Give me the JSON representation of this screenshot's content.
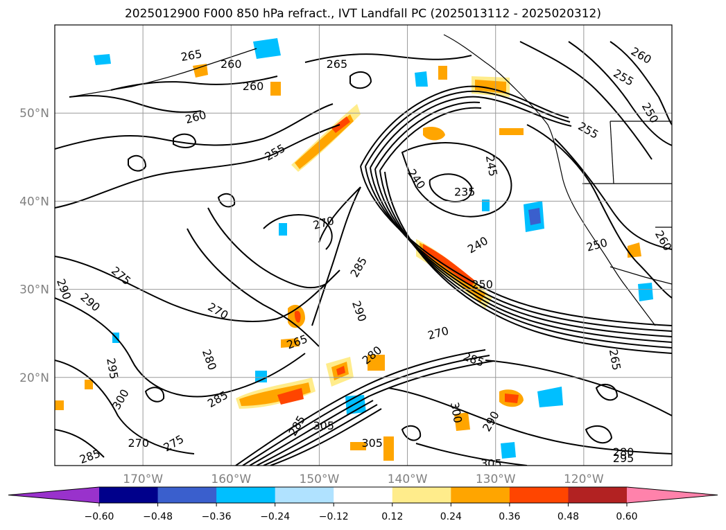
{
  "title": "2025012900 F000 850 hPa refract., IVT Landfall PC (2025013112 - 2025020312)",
  "map": {
    "lon_range": [
      -180,
      -110
    ],
    "lat_range": [
      10,
      60
    ],
    "lat_ticks": [
      {
        "value": 20,
        "label": "20°N"
      },
      {
        "value": 30,
        "label": "30°N"
      },
      {
        "value": 40,
        "label": "40°N"
      },
      {
        "value": 50,
        "label": "50°N"
      }
    ],
    "lon_ticks": [
      {
        "value": -170,
        "label": "170°W"
      },
      {
        "value": -160,
        "label": "160°W"
      },
      {
        "value": -150,
        "label": "150°W"
      },
      {
        "value": -140,
        "label": "140°W"
      },
      {
        "value": -130,
        "label": "130°W"
      },
      {
        "value": -120,
        "label": "120°W"
      }
    ],
    "grid": true,
    "contour_labels": [
      {
        "text": "265",
        "lon": -164.5,
        "lat": 56.5,
        "rot": -10
      },
      {
        "text": "260",
        "lon": -160.0,
        "lat": 55.5,
        "rot": 0
      },
      {
        "text": "265",
        "lon": -148.0,
        "lat": 55.5,
        "rot": 0
      },
      {
        "text": "260",
        "lon": -157.5,
        "lat": 53.0,
        "rot": 0
      },
      {
        "text": "260",
        "lon": -164.0,
        "lat": 49.5,
        "rot": -15
      },
      {
        "text": "255",
        "lon": -155.0,
        "lat": 45.5,
        "rot": -30
      },
      {
        "text": "260",
        "lon": -113.5,
        "lat": 56.5,
        "rot": 30
      },
      {
        "text": "255",
        "lon": -115.5,
        "lat": 54.0,
        "rot": 30
      },
      {
        "text": "255",
        "lon": -119.5,
        "lat": 48.0,
        "rot": 30
      },
      {
        "text": "250",
        "lon": -112.5,
        "lat": 50.0,
        "rot": 60
      },
      {
        "text": "245",
        "lon": -130.5,
        "lat": 44.0,
        "rot": 80
      },
      {
        "text": "240",
        "lon": -139.0,
        "lat": 42.5,
        "rot": 55
      },
      {
        "text": "235",
        "lon": -133.5,
        "lat": 41.0,
        "rot": 0
      },
      {
        "text": "270",
        "lon": -149.5,
        "lat": 37.5,
        "rot": -15
      },
      {
        "text": "240",
        "lon": -132.0,
        "lat": 35.0,
        "rot": -30
      },
      {
        "text": "250",
        "lon": -118.5,
        "lat": 35.0,
        "rot": -15
      },
      {
        "text": "260",
        "lon": -111.0,
        "lat": 35.5,
        "rot": 60
      },
      {
        "text": "275",
        "lon": -172.5,
        "lat": 31.5,
        "rot": 40
      },
      {
        "text": "285",
        "lon": -145.5,
        "lat": 32.5,
        "rot": -60
      },
      {
        "text": "250",
        "lon": -131.5,
        "lat": 30.5,
        "rot": 0
      },
      {
        "text": "290",
        "lon": -179.0,
        "lat": 30.0,
        "rot": 70
      },
      {
        "text": "290",
        "lon": -176.0,
        "lat": 28.5,
        "rot": 40
      },
      {
        "text": "270",
        "lon": -161.5,
        "lat": 27.5,
        "rot": 30
      },
      {
        "text": "290",
        "lon": -145.5,
        "lat": 27.5,
        "rot": 70
      },
      {
        "text": "270",
        "lon": -136.5,
        "lat": 25.0,
        "rot": -15
      },
      {
        "text": "265",
        "lon": -152.5,
        "lat": 24.0,
        "rot": -20
      },
      {
        "text": "280",
        "lon": -144.0,
        "lat": 22.5,
        "rot": -40
      },
      {
        "text": "280",
        "lon": -162.5,
        "lat": 22.0,
        "rot": 70
      },
      {
        "text": "285",
        "lon": -132.5,
        "lat": 22.0,
        "rot": 20
      },
      {
        "text": "265",
        "lon": -116.5,
        "lat": 22.0,
        "rot": 80
      },
      {
        "text": "295",
        "lon": -173.5,
        "lat": 21.0,
        "rot": 80
      },
      {
        "text": "285",
        "lon": -161.5,
        "lat": 17.5,
        "rot": -30
      },
      {
        "text": "300",
        "lon": -172.5,
        "lat": 17.5,
        "rot": -60
      },
      {
        "text": "285",
        "lon": -152.5,
        "lat": 14.5,
        "rot": -60
      },
      {
        "text": "305",
        "lon": -149.5,
        "lat": 14.5,
        "rot": 0
      },
      {
        "text": "300",
        "lon": -134.5,
        "lat": 16.0,
        "rot": 80
      },
      {
        "text": "290",
        "lon": -130.5,
        "lat": 15.0,
        "rot": -60
      },
      {
        "text": "305",
        "lon": -144.0,
        "lat": 12.5,
        "rot": 0
      },
      {
        "text": "270",
        "lon": -170.5,
        "lat": 12.5,
        "rot": 0
      },
      {
        "text": "275",
        "lon": -166.5,
        "lat": 12.5,
        "rot": -30
      },
      {
        "text": "285",
        "lon": -176.0,
        "lat": 11.0,
        "rot": -20
      },
      {
        "text": "305",
        "lon": -130.5,
        "lat": 10.2,
        "rot": 0
      },
      {
        "text": "280",
        "lon": -115.5,
        "lat": 11.5,
        "rot": 0
      },
      {
        "text": "295",
        "lon": -115.5,
        "lat": 10.8,
        "rot": 0
      }
    ]
  },
  "colorbar": {
    "levels": [
      -0.6,
      -0.48,
      -0.36,
      -0.24,
      -0.12,
      0.12,
      0.24,
      0.36,
      0.48,
      0.6
    ],
    "tick_labels": [
      "−0.60",
      "−0.48",
      "−0.36",
      "−0.24",
      "−0.12",
      "0.12",
      "0.24",
      "0.36",
      "0.48",
      "0.60"
    ],
    "colors": [
      "#9932cc",
      "#00008b",
      "#3a5fcd",
      "#00bfff",
      "#b0e2ff",
      "#ffffff",
      "#ffec8b",
      "#ffa500",
      "#ff4500",
      "#b22222",
      "#ff82ab"
    ],
    "extend": "both"
  }
}
